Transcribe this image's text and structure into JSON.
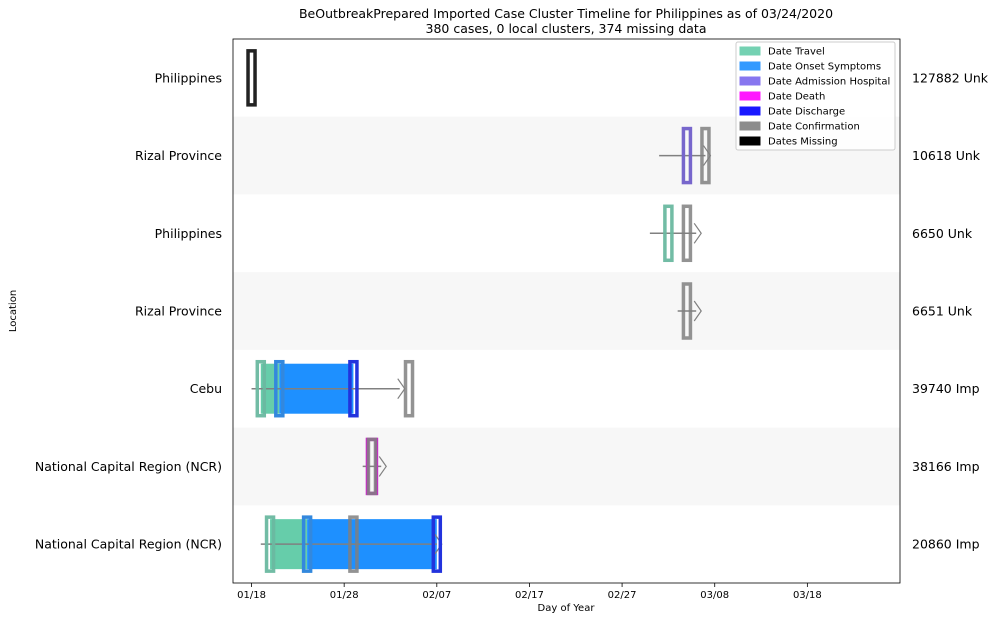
{
  "chart_data": {
    "type": "timeline",
    "title": "BeOutbreakPrepared Imported Case Cluster Timeline for Philippines as of 03/24/2020",
    "subtitle": "380 cases, 0 local clusters, 374 missing data",
    "xlabel": "Day of Year",
    "ylabel": "Location",
    "xlim": [
      "2020-01-16",
      "2020-03-28"
    ],
    "x_ticks": [
      "01/18",
      "01/28",
      "02/07",
      "02/17",
      "02/27",
      "03/08",
      "03/18"
    ],
    "x_tick_dates": [
      "2020-01-18",
      "2020-01-28",
      "2020-02-07",
      "2020-02-17",
      "2020-02-27",
      "2020-03-08",
      "2020-03-18"
    ],
    "legend": {
      "placement": "top-right",
      "entries": [
        {
          "key": "travel",
          "label": "Date Travel",
          "color": "#66cdaa"
        },
        {
          "key": "onset",
          "label": "Date Onset Symptoms",
          "color": "#1e90ff"
        },
        {
          "key": "admission",
          "label": "Date Admission Hospital",
          "color": "#7b68ee"
        },
        {
          "key": "death",
          "label": "Date Death",
          "color": "#ff00ff"
        },
        {
          "key": "discharge",
          "label": "Date Discharge",
          "color": "#0000ff"
        },
        {
          "key": "confirmation",
          "label": "Date Confirmation",
          "color": "#808080"
        },
        {
          "key": "missing",
          "label": "Dates Missing",
          "color": "#000000"
        }
      ]
    },
    "rows": [
      {
        "location": "Philippines",
        "case": "127882 Unk",
        "line": null,
        "markers": [
          {
            "type": "missing",
            "date": "2020-01-18"
          }
        ],
        "spans": []
      },
      {
        "location": "Rizal Province",
        "case": "10618 Unk",
        "line": [
          "2020-03-02",
          "2020-03-07"
        ],
        "markers": [
          {
            "type": "admission",
            "date": "2020-03-05"
          },
          {
            "type": "confirmation",
            "date": "2020-03-07"
          }
        ],
        "spans": []
      },
      {
        "location": "Philippines",
        "case": "6650 Unk",
        "line": [
          "2020-03-01",
          "2020-03-06"
        ],
        "markers": [
          {
            "type": "travel",
            "date": "2020-03-03"
          },
          {
            "type": "confirmation",
            "date": "2020-03-05"
          }
        ],
        "spans": []
      },
      {
        "location": "Rizal Province",
        "case": "6651 Unk",
        "line": [
          "2020-03-04",
          "2020-03-06"
        ],
        "markers": [
          {
            "type": "confirmation",
            "date": "2020-03-05"
          }
        ],
        "spans": []
      },
      {
        "location": "Cebu",
        "case": "39740 Imp",
        "line": [
          "2020-01-18",
          "2020-02-03"
        ],
        "markers": [
          {
            "type": "travel",
            "date": "2020-01-19"
          },
          {
            "type": "onset",
            "date": "2020-01-21"
          },
          {
            "type": "discharge",
            "date": "2020-01-29"
          },
          {
            "type": "confirmation",
            "date": "2020-02-04"
          }
        ],
        "spans": [
          {
            "type": "travel",
            "start": "2020-01-19",
            "end": "2020-01-21"
          },
          {
            "type": "onset",
            "start": "2020-01-21",
            "end": "2020-01-29"
          }
        ]
      },
      {
        "location": "National Capital Region (NCR)",
        "case": "38166 Imp",
        "line": [
          "2020-01-30",
          "2020-02-01"
        ],
        "markers": [
          {
            "type": "death",
            "date": "2020-01-31"
          },
          {
            "type": "confirmation",
            "date": "2020-01-31"
          }
        ],
        "spans": []
      },
      {
        "location": "National Capital Region (NCR)",
        "case": "20860 Imp",
        "line": [
          "2020-01-19",
          "2020-02-07"
        ],
        "markers": [
          {
            "type": "travel",
            "date": "2020-01-20"
          },
          {
            "type": "onset",
            "date": "2020-01-24"
          },
          {
            "type": "confirmation",
            "date": "2020-01-29"
          },
          {
            "type": "discharge",
            "date": "2020-02-07"
          }
        ],
        "spans": [
          {
            "type": "travel",
            "start": "2020-01-20",
            "end": "2020-01-24"
          },
          {
            "type": "onset",
            "start": "2020-01-24",
            "end": "2020-02-07"
          }
        ]
      }
    ]
  }
}
